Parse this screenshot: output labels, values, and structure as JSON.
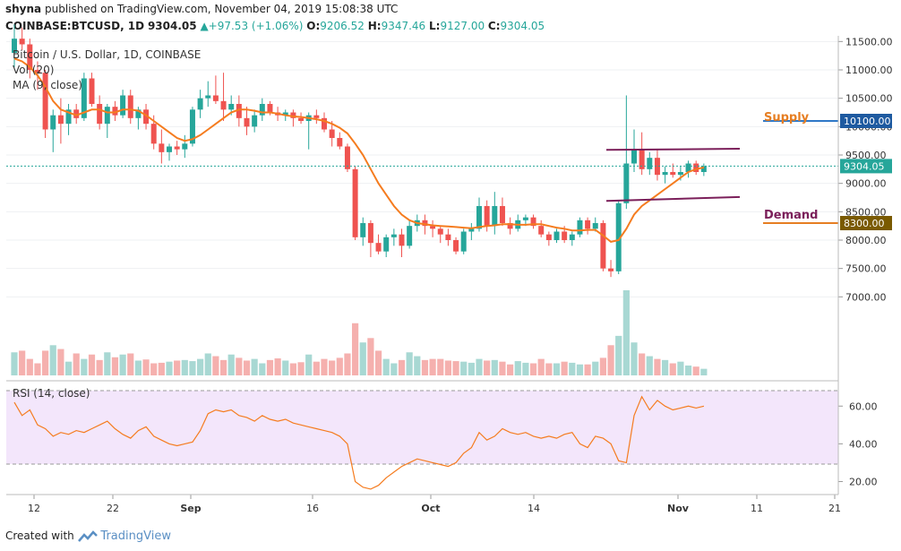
{
  "header": {
    "publisher": "shyna",
    "published_text": "published on TradingView.com, November 04, 2019 15:08:38 UTC",
    "symbol": "COINBASE:BTCUSD, 1D",
    "last": "9304.05",
    "change": "+97.53 (+1.06%)",
    "o_label": "O:",
    "o": "9206.52",
    "h_label": "H:",
    "h": "9347.46",
    "l_label": "L:",
    "l": "9127.00",
    "c_label": "C:",
    "c": "9304.05"
  },
  "legend": {
    "title": "Bitcoin / U.S. Dollar, 1D, COINBASE",
    "vol": "Vol (20)",
    "ma": "MA (9, close)"
  },
  "rsi_label": "RSI (14, close)",
  "annotations": {
    "supply": "Supply",
    "demand": "Demand"
  },
  "footer": {
    "created_with": "Created with",
    "brand": "TradingView"
  },
  "colors": {
    "up": "#26a69a",
    "down": "#ef5350",
    "ma": "#f57c1f",
    "rsi": "#f57c1f",
    "channel": "#7b1f5a",
    "supply": "#e67e22",
    "demand": "#7b1f5a",
    "price_tag": "#1e5aa0",
    "price_line": "#26a69a",
    "supply_line": "#2e78c7",
    "demand_line": "#e67e22"
  },
  "chart_data": {
    "type": "candlestick",
    "price_axis": {
      "ticks": [
        7000,
        7500,
        8000,
        8500,
        9000,
        9500,
        10000,
        10500,
        11000,
        11500
      ],
      "tick_labels": [
        "7000.00",
        "7500.00",
        "8000.00",
        "8500.00",
        "9000.00",
        "9500.00",
        "10000.00",
        "10500.00",
        "11000.00",
        "11500.00"
      ],
      "scale_low": 5600,
      "scale_high": 11600
    },
    "x_labels": [
      "12",
      "22",
      "Sep",
      "16",
      "Oct",
      "14",
      "Nov",
      "11",
      "21"
    ],
    "price_tags": [
      {
        "value": 10100,
        "label": "10100.00",
        "color": "#1e5aa0"
      },
      {
        "value": 9304.05,
        "label": "9304.05",
        "color": "#26a69a"
      },
      {
        "value": 8300,
        "label": "8300.00",
        "color": "#7a5a00"
      }
    ],
    "levels": {
      "supply": 10100,
      "demand": 8300,
      "last": 9304.05
    },
    "channel": {
      "upper": {
        "from": 9590,
        "to": 9610
      },
      "lower": {
        "from": 8690,
        "to": 8760
      }
    },
    "candles": [
      {
        "o": 11300,
        "h": 11800,
        "l": 11050,
        "c": 11550
      },
      {
        "o": 11550,
        "h": 11750,
        "l": 11350,
        "c": 11450
      },
      {
        "o": 11450,
        "h": 11550,
        "l": 10850,
        "c": 11000
      },
      {
        "o": 11000,
        "h": 11150,
        "l": 10650,
        "c": 10950
      },
      {
        "o": 10950,
        "h": 11000,
        "l": 9800,
        "c": 9950
      },
      {
        "o": 9950,
        "h": 10300,
        "l": 9550,
        "c": 10200
      },
      {
        "o": 10200,
        "h": 10500,
        "l": 9700,
        "c": 10050
      },
      {
        "o": 10050,
        "h": 10400,
        "l": 9850,
        "c": 10300
      },
      {
        "o": 10300,
        "h": 10400,
        "l": 10050,
        "c": 10150
      },
      {
        "o": 10150,
        "h": 10950,
        "l": 10100,
        "c": 10850
      },
      {
        "o": 10850,
        "h": 10950,
        "l": 10350,
        "c": 10400
      },
      {
        "o": 10400,
        "h": 10550,
        "l": 9950,
        "c": 10050
      },
      {
        "o": 10050,
        "h": 10400,
        "l": 9800,
        "c": 10350
      },
      {
        "o": 10350,
        "h": 10450,
        "l": 10100,
        "c": 10200
      },
      {
        "o": 10200,
        "h": 10650,
        "l": 10150,
        "c": 10550
      },
      {
        "o": 10550,
        "h": 10650,
        "l": 10050,
        "c": 10150
      },
      {
        "o": 10150,
        "h": 10350,
        "l": 9950,
        "c": 10300
      },
      {
        "o": 10300,
        "h": 10400,
        "l": 9950,
        "c": 10050
      },
      {
        "o": 10050,
        "h": 10200,
        "l": 9600,
        "c": 9700
      },
      {
        "o": 9700,
        "h": 9950,
        "l": 9350,
        "c": 9550
      },
      {
        "o": 9550,
        "h": 9700,
        "l": 9400,
        "c": 9650
      },
      {
        "o": 9650,
        "h": 9750,
        "l": 9500,
        "c": 9600
      },
      {
        "o": 9600,
        "h": 9850,
        "l": 9450,
        "c": 9700
      },
      {
        "o": 9700,
        "h": 10350,
        "l": 9650,
        "c": 10300
      },
      {
        "o": 10300,
        "h": 10650,
        "l": 10150,
        "c": 10500
      },
      {
        "o": 10500,
        "h": 10800,
        "l": 10350,
        "c": 10550
      },
      {
        "o": 10550,
        "h": 10900,
        "l": 10400,
        "c": 10450
      },
      {
        "o": 10450,
        "h": 10950,
        "l": 10100,
        "c": 10300
      },
      {
        "o": 10300,
        "h": 10550,
        "l": 10200,
        "c": 10400
      },
      {
        "o": 10400,
        "h": 10550,
        "l": 10000,
        "c": 10150
      },
      {
        "o": 10150,
        "h": 10350,
        "l": 9850,
        "c": 10000
      },
      {
        "o": 10000,
        "h": 10300,
        "l": 9900,
        "c": 10200
      },
      {
        "o": 10200,
        "h": 10500,
        "l": 10100,
        "c": 10400
      },
      {
        "o": 10400,
        "h": 10450,
        "l": 10200,
        "c": 10250
      },
      {
        "o": 10250,
        "h": 10350,
        "l": 10100,
        "c": 10200
      },
      {
        "o": 10200,
        "h": 10300,
        "l": 10100,
        "c": 10250
      },
      {
        "o": 10250,
        "h": 10300,
        "l": 10000,
        "c": 10150
      },
      {
        "o": 10150,
        "h": 10250,
        "l": 10050,
        "c": 10100
      },
      {
        "o": 10100,
        "h": 10250,
        "l": 9600,
        "c": 10200
      },
      {
        "o": 10200,
        "h": 10300,
        "l": 10050,
        "c": 10150
      },
      {
        "o": 10150,
        "h": 10250,
        "l": 9900,
        "c": 9950
      },
      {
        "o": 9950,
        "h": 10100,
        "l": 9650,
        "c": 9800
      },
      {
        "o": 9800,
        "h": 9900,
        "l": 9600,
        "c": 9650
      },
      {
        "o": 9650,
        "h": 9700,
        "l": 9200,
        "c": 9250
      },
      {
        "o": 9250,
        "h": 9300,
        "l": 8000,
        "c": 8050
      },
      {
        "o": 8050,
        "h": 8400,
        "l": 7900,
        "c": 8300
      },
      {
        "o": 8300,
        "h": 8350,
        "l": 7700,
        "c": 7950
      },
      {
        "o": 7950,
        "h": 8100,
        "l": 7750,
        "c": 7800
      },
      {
        "o": 7800,
        "h": 8100,
        "l": 7700,
        "c": 8050
      },
      {
        "o": 8050,
        "h": 8200,
        "l": 7900,
        "c": 8100
      },
      {
        "o": 8100,
        "h": 8200,
        "l": 7700,
        "c": 7900
      },
      {
        "o": 7900,
        "h": 8350,
        "l": 7850,
        "c": 8250
      },
      {
        "o": 8250,
        "h": 8450,
        "l": 8150,
        "c": 8350
      },
      {
        "o": 8350,
        "h": 8450,
        "l": 8100,
        "c": 8250
      },
      {
        "o": 8250,
        "h": 8350,
        "l": 8050,
        "c": 8200
      },
      {
        "o": 8200,
        "h": 8250,
        "l": 7950,
        "c": 8100
      },
      {
        "o": 8100,
        "h": 8200,
        "l": 7900,
        "c": 8000
      },
      {
        "o": 8000,
        "h": 8050,
        "l": 7750,
        "c": 7800
      },
      {
        "o": 7800,
        "h": 8200,
        "l": 7750,
        "c": 8150
      },
      {
        "o": 8150,
        "h": 8300,
        "l": 8000,
        "c": 8200
      },
      {
        "o": 8200,
        "h": 8750,
        "l": 8150,
        "c": 8600
      },
      {
        "o": 8600,
        "h": 8700,
        "l": 8150,
        "c": 8250
      },
      {
        "o": 8250,
        "h": 8850,
        "l": 8100,
        "c": 8600
      },
      {
        "o": 8600,
        "h": 8750,
        "l": 8250,
        "c": 8300
      },
      {
        "o": 8300,
        "h": 8400,
        "l": 8100,
        "c": 8200
      },
      {
        "o": 8200,
        "h": 8450,
        "l": 8150,
        "c": 8350
      },
      {
        "o": 8350,
        "h": 8450,
        "l": 8250,
        "c": 8400
      },
      {
        "o": 8400,
        "h": 8450,
        "l": 8200,
        "c": 8250
      },
      {
        "o": 8250,
        "h": 8350,
        "l": 8050,
        "c": 8100
      },
      {
        "o": 8100,
        "h": 8150,
        "l": 7900,
        "c": 8000
      },
      {
        "o": 8000,
        "h": 8200,
        "l": 7950,
        "c": 8150
      },
      {
        "o": 8150,
        "h": 8250,
        "l": 7950,
        "c": 8000
      },
      {
        "o": 8000,
        "h": 8150,
        "l": 7900,
        "c": 8100
      },
      {
        "o": 8100,
        "h": 8400,
        "l": 8050,
        "c": 8350
      },
      {
        "o": 8350,
        "h": 8400,
        "l": 8100,
        "c": 8200
      },
      {
        "o": 8200,
        "h": 8400,
        "l": 8150,
        "c": 8300
      },
      {
        "o": 8300,
        "h": 8350,
        "l": 7450,
        "c": 7500
      },
      {
        "o": 7500,
        "h": 7650,
        "l": 7350,
        "c": 7450
      },
      {
        "o": 7450,
        "h": 8700,
        "l": 7400,
        "c": 8650
      },
      {
        "o": 8650,
        "h": 10550,
        "l": 8550,
        "c": 9350
      },
      {
        "o": 9350,
        "h": 9950,
        "l": 9200,
        "c": 9600
      },
      {
        "o": 9600,
        "h": 9900,
        "l": 9150,
        "c": 9250
      },
      {
        "o": 9250,
        "h": 9550,
        "l": 9150,
        "c": 9450
      },
      {
        "o": 9450,
        "h": 9600,
        "l": 9050,
        "c": 9150
      },
      {
        "o": 9150,
        "h": 9300,
        "l": 9000,
        "c": 9200
      },
      {
        "o": 9200,
        "h": 9350,
        "l": 9100,
        "c": 9150
      },
      {
        "o": 9150,
        "h": 9300,
        "l": 9050,
        "c": 9200
      },
      {
        "o": 9200,
        "h": 9400,
        "l": 9100,
        "c": 9350
      },
      {
        "o": 9350,
        "h": 9400,
        "l": 9150,
        "c": 9200
      },
      {
        "o": 9200,
        "h": 9350,
        "l": 9130,
        "c": 9304
      }
    ],
    "ma9": [
      11200,
      11150,
      11050,
      10900,
      10700,
      10450,
      10300,
      10250,
      10200,
      10250,
      10300,
      10300,
      10250,
      10250,
      10300,
      10300,
      10280,
      10200,
      10100,
      10000,
      9900,
      9800,
      9750,
      9780,
      9850,
      9950,
      10050,
      10150,
      10250,
      10300,
      10300,
      10280,
      10250,
      10250,
      10230,
      10200,
      10180,
      10170,
      10150,
      10130,
      10100,
      10050,
      9980,
      9880,
      9700,
      9500,
      9250,
      9000,
      8800,
      8600,
      8450,
      8350,
      8300,
      8280,
      8260,
      8250,
      8240,
      8230,
      8220,
      8210,
      8230,
      8250,
      8260,
      8280,
      8280,
      8270,
      8270,
      8280,
      8280,
      8250,
      8220,
      8200,
      8170,
      8170,
      8180,
      8180,
      8080,
      7970,
      8000,
      8200,
      8450,
      8600,
      8700,
      8800,
      8900,
      9000,
      9100,
      9200,
      9250,
      9280
    ],
    "volume": [
      42,
      45,
      30,
      22,
      45,
      55,
      48,
      25,
      40,
      30,
      38,
      28,
      42,
      33,
      38,
      40,
      27,
      29,
      22,
      23,
      25,
      27,
      28,
      26,
      30,
      40,
      35,
      28,
      38,
      32,
      27,
      30,
      22,
      28,
      31,
      27,
      22,
      24,
      38,
      25,
      30,
      27,
      32,
      40,
      95,
      60,
      68,
      45,
      30,
      22,
      28,
      42,
      35,
      28,
      30,
      30,
      27,
      26,
      25,
      23,
      30,
      27,
      28,
      25,
      20,
      26,
      23,
      22,
      30,
      22,
      22,
      25,
      23,
      20,
      20,
      25,
      32,
      55,
      72,
      155,
      60,
      40,
      35,
      30,
      28,
      22,
      25,
      18,
      16,
      12
    ],
    "rsi": [
      62,
      55,
      58,
      50,
      48,
      44,
      46,
      45,
      47,
      46,
      48,
      50,
      52,
      48,
      45,
      43,
      47,
      49,
      44,
      42,
      40,
      39,
      40,
      41,
      47,
      56,
      58,
      57,
      58,
      55,
      54,
      52,
      55,
      53,
      52,
      53,
      51,
      50,
      49,
      48,
      47,
      46,
      44,
      40,
      20,
      17,
      16,
      18,
      22,
      25,
      28,
      30,
      32,
      31,
      30,
      29,
      28,
      30,
      35,
      38,
      46,
      42,
      44,
      48,
      46,
      45,
      46,
      44,
      43,
      44,
      43,
      45,
      46,
      40,
      38,
      44,
      43,
      40,
      31,
      30,
      55,
      65,
      58,
      63,
      60,
      58,
      59,
      60,
      59,
      60
    ]
  }
}
